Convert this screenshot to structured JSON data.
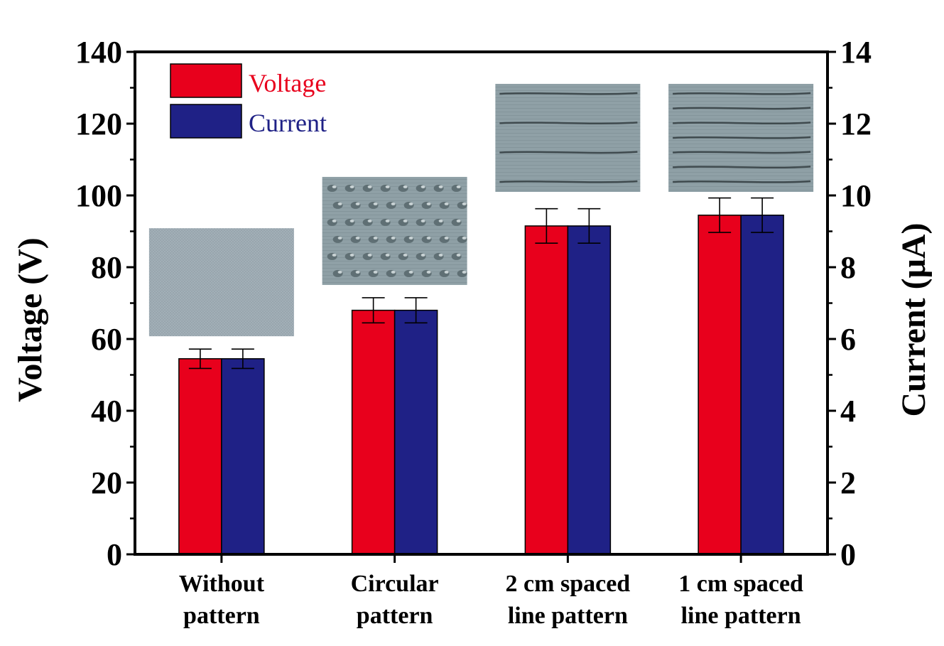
{
  "chart_data": {
    "type": "bar",
    "categories": [
      [
        "Without",
        "pattern"
      ],
      [
        "Circular",
        "pattern"
      ],
      [
        "2 cm spaced",
        "line pattern"
      ],
      [
        "1 cm spaced",
        "line pattern"
      ]
    ],
    "series": [
      {
        "name": "Voltage",
        "axis": "left",
        "values": [
          54.5,
          68,
          91.5,
          94.5
        ],
        "errors": [
          2.7,
          3.5,
          4.8,
          4.8
        ],
        "color": "#e8001c"
      },
      {
        "name": "Current",
        "axis": "right",
        "values": [
          5.45,
          6.8,
          9.15,
          9.45
        ],
        "errors": [
          0.27,
          0.35,
          0.48,
          0.48
        ],
        "color": "#1f2186"
      }
    ],
    "ylabel": "Voltage (V)",
    "y2label": "Current (μA)",
    "ylim": [
      0,
      140
    ],
    "y2lim": [
      0,
      14
    ],
    "yticks": [
      "0",
      "20",
      "40",
      "60",
      "80",
      "100",
      "120",
      "140"
    ],
    "y2ticks": [
      "0",
      "2",
      "4",
      "6",
      "8",
      "10",
      "12",
      "14"
    ],
    "legend": "top-left",
    "grid": false,
    "insets": [
      {
        "category": 0,
        "depicts": "plain fabric swatch"
      },
      {
        "category": 1,
        "depicts": "fabric with circular stitch pattern"
      },
      {
        "category": 2,
        "depicts": "fabric with 2 cm spaced stitched lines"
      },
      {
        "category": 3,
        "depicts": "fabric with 1 cm spaced stitched lines"
      }
    ]
  }
}
